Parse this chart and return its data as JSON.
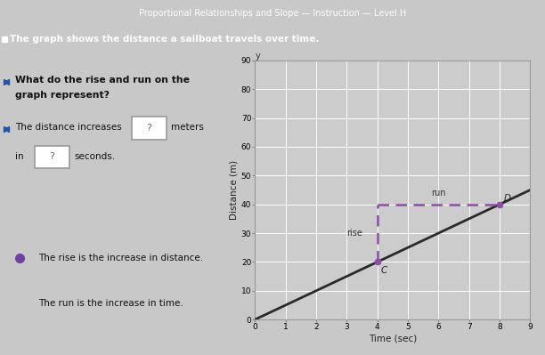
{
  "title": "Proportional Relationships and Slope — Instruction — Level H",
  "subtitle": "The graph shows the distance a sailboat travels over time.",
  "xlabel": "Time (sec)",
  "ylabel": "Distance (m)",
  "xlim": [
    0,
    9
  ],
  "ylim": [
    0,
    90
  ],
  "xticks": [
    0,
    1,
    2,
    3,
    4,
    5,
    6,
    7,
    8,
    9
  ],
  "yticks": [
    0,
    10,
    20,
    30,
    40,
    50,
    60,
    70,
    80,
    90
  ],
  "line_x": [
    0,
    9
  ],
  "line_y": [
    0,
    45
  ],
  "line_color": "#2a2a2a",
  "line_width": 2.0,
  "point_C": [
    4,
    20
  ],
  "point_D": [
    8,
    40
  ],
  "dashed_color": "#8b4faa",
  "dashed_lw": 1.8,
  "rise_label": "rise",
  "run_label": "run",
  "D_label": "D",
  "C_label": "C",
  "y_label_graph": "y",
  "bg_color_header": "#4a6fa5",
  "bg_color_subheader": "#5a80b8",
  "bg_color_panel": "#c8c8c8",
  "bg_color_plot": "#cccccc",
  "bg_color_white": "#e0e0e0",
  "hint_bg": "#ddc8f0",
  "text_color": "#111111",
  "box_border": "#999999"
}
